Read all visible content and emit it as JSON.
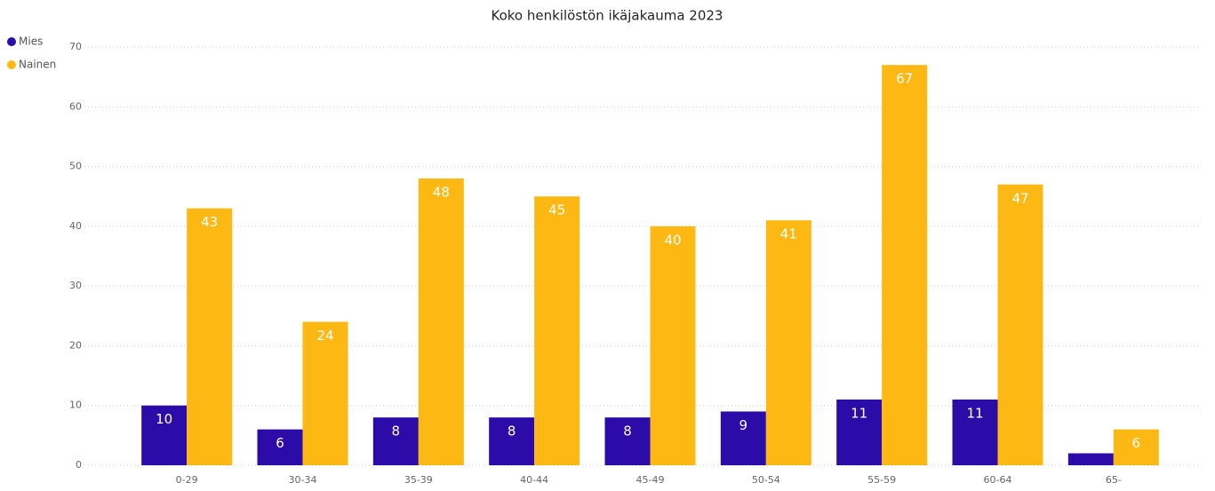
{
  "chart_data": {
    "type": "bar",
    "title": "Koko henkilöstön ikäjakauma 2023",
    "categories": [
      "0-29",
      "30-34",
      "35-39",
      "40-44",
      "45-49",
      "50-54",
      "55-59",
      "60-64",
      "65-"
    ],
    "series": [
      {
        "name": "Mies",
        "color": "#2b0ca8",
        "values": [
          10,
          6,
          8,
          8,
          8,
          9,
          11,
          11,
          2
        ],
        "value_labels": [
          "10",
          "6",
          "8",
          "8",
          "8",
          "9",
          "11",
          "11",
          null
        ]
      },
      {
        "name": "Nainen",
        "color": "#fdb813",
        "values": [
          43,
          24,
          48,
          45,
          40,
          41,
          67,
          47,
          6
        ],
        "value_labels": [
          "43",
          "24",
          "48",
          "45",
          "40",
          "41",
          "67",
          "47",
          "6"
        ]
      }
    ],
    "ylim": [
      0,
      70
    ],
    "yticks": [
      0,
      10,
      20,
      30,
      40,
      50,
      60,
      70
    ],
    "grid": true,
    "legend": "top-left"
  }
}
